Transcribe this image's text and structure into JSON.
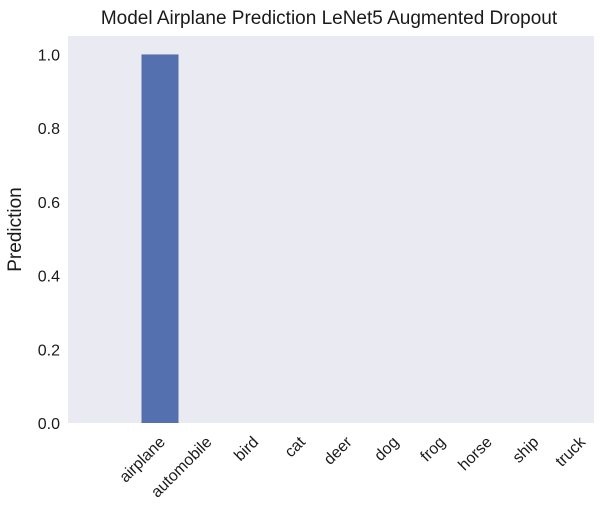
{
  "chart_data": {
    "type": "bar",
    "title": "Model Airplane Prediction LeNet5 Augmented Dropout",
    "xlabel": "",
    "ylabel": "Prediction",
    "categories": [
      "airplane",
      "automobile",
      "bird",
      "cat",
      "deer",
      "dog",
      "frog",
      "horse",
      "ship",
      "truck"
    ],
    "values": [
      1.0,
      0.0,
      0.0,
      0.0,
      0.0,
      0.0,
      0.0,
      0.0,
      0.0,
      0.0
    ],
    "ylim": [
      0,
      1.05
    ],
    "yticks": [
      "0.0",
      "0.2",
      "0.4",
      "0.6",
      "0.8",
      "1.0"
    ],
    "grid": false,
    "colors": {
      "bar": "#5470ae",
      "plot_background": "#eaeaf2",
      "page_background": "#ffffff"
    }
  }
}
